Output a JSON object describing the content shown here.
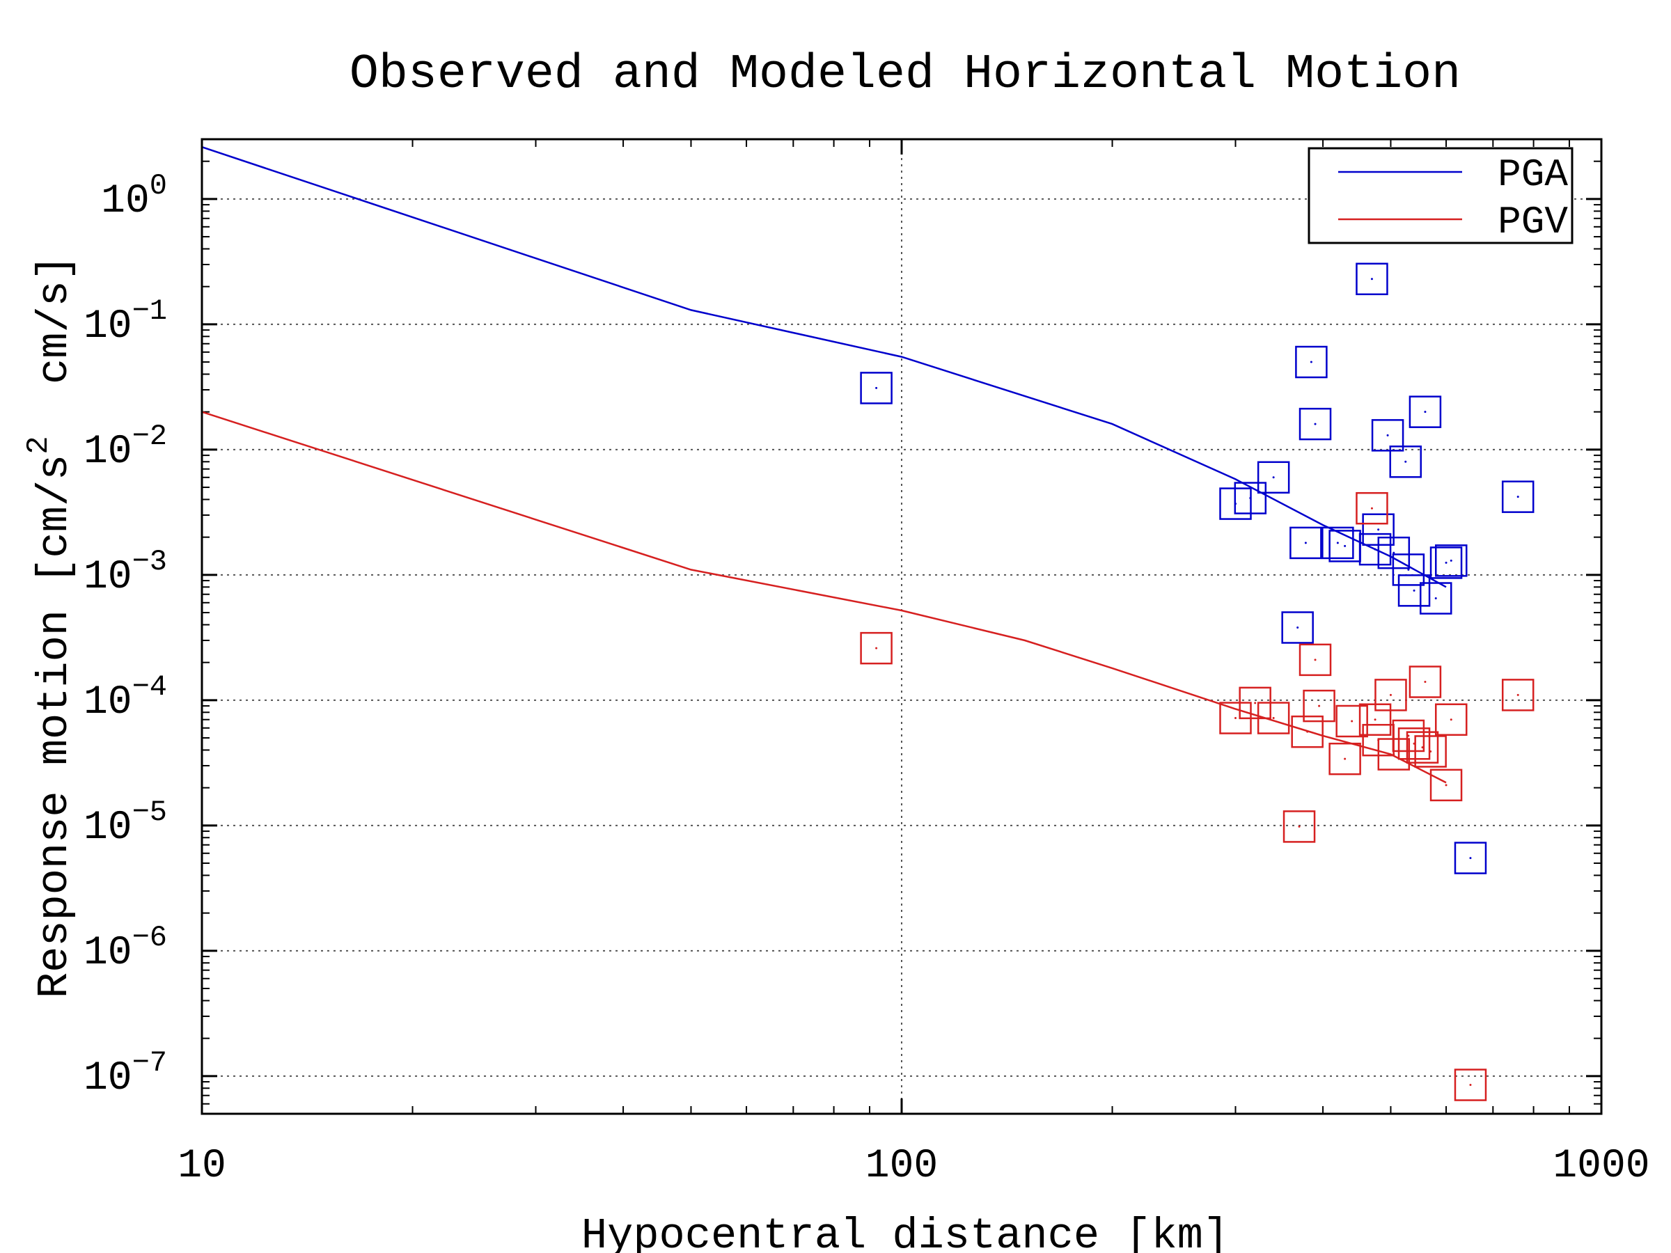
{
  "chart_data": {
    "type": "scatter",
    "title": "Observed and Modeled Horizontal Motion",
    "xlabel": "Hypocentral distance [km]",
    "ylabel": "Response motion [cm/s² cm/s]",
    "ylabel_parts": {
      "pre": "Response motion [cm/s",
      "sup": "2",
      "post": "  cm/s]"
    },
    "xscale": "log",
    "yscale": "log",
    "xlim": [
      10,
      1000
    ],
    "ylim": [
      5e-08,
      3
    ],
    "x_ticks": [
      {
        "value": 10,
        "label": "10"
      },
      {
        "value": 100,
        "label": "100"
      },
      {
        "value": 1000,
        "label": "1000"
      }
    ],
    "y_ticks": [
      {
        "value": 1,
        "base": "10",
        "exp": "0"
      },
      {
        "value": 0.1,
        "base": "10",
        "exp": "−1"
      },
      {
        "value": 0.01,
        "base": "10",
        "exp": "−2"
      },
      {
        "value": 0.001,
        "base": "10",
        "exp": "−3"
      },
      {
        "value": 0.0001,
        "base": "10",
        "exp": "−4"
      },
      {
        "value": 1e-05,
        "base": "10",
        "exp": "−5"
      },
      {
        "value": 1e-06,
        "base": "10",
        "exp": "−6"
      },
      {
        "value": 1e-07,
        "base": "10",
        "exp": "−7"
      }
    ],
    "grid": true,
    "legend_position": "top-right",
    "series": [
      {
        "name": "PGA",
        "color": "#0000cc",
        "line": [
          [
            10,
            2.6
          ],
          [
            50,
            0.13
          ],
          [
            100,
            0.055
          ],
          [
            200,
            0.016
          ],
          [
            300,
            0.0058
          ],
          [
            400,
            0.0025
          ],
          [
            500,
            0.0014
          ],
          [
            600,
            0.0008
          ]
        ],
        "points": [
          [
            92,
            0.031
          ],
          [
            470,
            0.23
          ],
          [
            385,
            0.05
          ],
          [
            390,
            0.016
          ],
          [
            560,
            0.02
          ],
          [
            495,
            0.013
          ],
          [
            525,
            0.008
          ],
          [
            340,
            0.006
          ],
          [
            300,
            0.0037
          ],
          [
            315,
            0.0041
          ],
          [
            760,
            0.0042
          ],
          [
            480,
            0.0023
          ],
          [
            378,
            0.0018
          ],
          [
            420,
            0.0018
          ],
          [
            430,
            0.0017
          ],
          [
            475,
            0.0016
          ],
          [
            505,
            0.0015
          ],
          [
            530,
            0.0011
          ],
          [
            600,
            0.00125
          ],
          [
            610,
            0.0013
          ],
          [
            540,
            0.00075
          ],
          [
            580,
            0.00065
          ],
          [
            368,
            0.00038
          ],
          [
            650,
            5.5e-06
          ]
        ]
      },
      {
        "name": "PGV",
        "color": "#d62020",
        "line": [
          [
            10,
            0.02
          ],
          [
            50,
            0.0011
          ],
          [
            100,
            0.00052
          ],
          [
            150,
            0.0003
          ],
          [
            200,
            0.00018
          ],
          [
            300,
            8.5e-05
          ],
          [
            400,
            5.2e-05
          ],
          [
            500,
            3.7e-05
          ],
          [
            600,
            2.2e-05
          ]
        ],
        "points": [
          [
            92,
            0.00026
          ],
          [
            470,
            0.0034
          ],
          [
            390,
            0.00021
          ],
          [
            560,
            0.00014
          ],
          [
            500,
            0.00011
          ],
          [
            760,
            0.00011
          ],
          [
            320,
            9.5e-05
          ],
          [
            395,
            9e-05
          ],
          [
            300,
            7.2e-05
          ],
          [
            340,
            7.2e-05
          ],
          [
            440,
            6.8e-05
          ],
          [
            475,
            7e-05
          ],
          [
            610,
            7e-05
          ],
          [
            380,
            5.6e-05
          ],
          [
            480,
            4.8e-05
          ],
          [
            530,
            5.2e-05
          ],
          [
            540,
            4.5e-05
          ],
          [
            555,
            4.2e-05
          ],
          [
            505,
            3.7e-05
          ],
          [
            570,
            3.9e-05
          ],
          [
            430,
            3.4e-05
          ],
          [
            600,
            2.1e-05
          ],
          [
            370,
            9.8e-06
          ],
          [
            650,
            8.5e-08
          ]
        ]
      }
    ]
  }
}
